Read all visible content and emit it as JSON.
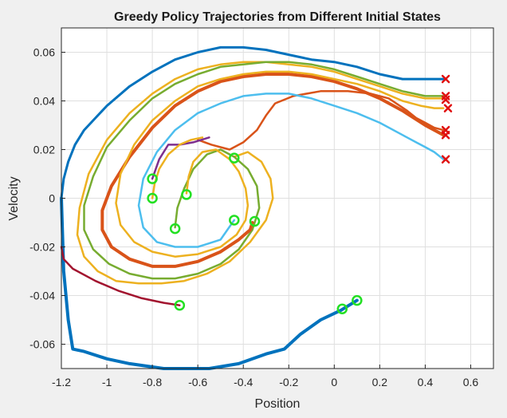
{
  "chart_data": {
    "type": "line",
    "title": "Greedy Policy Trajectories from Different Initial States",
    "xlabel": "Position",
    "ylabel": "Velocity",
    "xlim": [
      -1.2,
      0.7
    ],
    "ylim": [
      -0.07,
      0.07
    ],
    "xticks": [
      -1.2,
      -1,
      -0.8,
      -0.6,
      -0.4,
      -0.2,
      0,
      0.2,
      0.4,
      0.6
    ],
    "xtick_labels": [
      "-1.2",
      "-1",
      "-0.8",
      "-0.6",
      "-0.4",
      "-0.2",
      "0",
      "0.2",
      "0.4",
      "0.6"
    ],
    "yticks": [
      -0.06,
      -0.04,
      -0.02,
      0,
      0.02,
      0.04,
      0.06
    ],
    "ytick_labels": [
      "-0.06",
      "-0.04",
      "-0.02",
      "0",
      "0.02",
      "0.04",
      "0.06"
    ],
    "grid": true,
    "start_marker": {
      "shape": "circle",
      "color": "#22e022"
    },
    "end_marker": {
      "shape": "x",
      "color": "#e01010"
    },
    "series": [
      {
        "color": "#0072bd",
        "width": 4,
        "x": [
          0.1,
          0.03,
          -0.06,
          -0.15,
          -0.22,
          -0.3,
          -0.42,
          -0.55,
          -0.65,
          -0.75,
          -0.9,
          -1.0,
          -1.1,
          -1.15,
          -1.17,
          -1.19,
          -1.2
        ],
        "y": [
          -0.042,
          -0.046,
          -0.05,
          -0.056,
          -0.062,
          -0.064,
          -0.068,
          -0.07,
          -0.07,
          -0.07,
          -0.068,
          -0.066,
          -0.063,
          -0.062,
          -0.05,
          -0.03,
          0.0
        ]
      },
      {
        "color": "#0072bd",
        "width": 3,
        "x": [
          -1.2,
          -1.19,
          -1.17,
          -1.14,
          -1.1,
          -1.0,
          -0.9,
          -0.8,
          -0.7,
          -0.6,
          -0.5,
          -0.4,
          -0.3,
          -0.2,
          -0.1,
          0.0,
          0.1,
          0.2,
          0.3,
          0.4,
          0.48
        ],
        "y": [
          0.0,
          0.008,
          0.015,
          0.022,
          0.028,
          0.038,
          0.046,
          0.052,
          0.057,
          0.06,
          0.062,
          0.062,
          0.061,
          0.059,
          0.057,
          0.056,
          0.054,
          0.051,
          0.049,
          0.049,
          0.049
        ]
      },
      {
        "color": "#a2142f",
        "width": 2.5,
        "x": [
          -0.68,
          -0.75,
          -0.85,
          -0.95,
          -1.05,
          -1.15,
          -1.19,
          -1.2
        ],
        "y": [
          -0.044,
          -0.043,
          -0.041,
          -0.038,
          -0.034,
          -0.029,
          -0.025,
          -0.02
        ]
      },
      {
        "color": "#edb120",
        "width": 2.5,
        "x": [
          0.48,
          0.4,
          0.3,
          0.2,
          0.1,
          0.0,
          -0.1,
          -0.2,
          -0.3,
          -0.4,
          -0.5,
          -0.6,
          -0.7,
          -0.8,
          -0.9,
          -1.0,
          -1.08,
          -1.12,
          -1.13,
          -1.1,
          -1.04,
          -0.96,
          -0.86,
          -0.76,
          -0.66,
          -0.56,
          -0.46,
          -0.37,
          -0.3,
          -0.27,
          -0.28,
          -0.32,
          -0.38,
          -0.44
        ],
        "y": [
          0.041,
          0.041,
          0.043,
          0.046,
          0.049,
          0.052,
          0.054,
          0.055,
          0.056,
          0.056,
          0.055,
          0.053,
          0.049,
          0.043,
          0.035,
          0.024,
          0.01,
          -0.004,
          -0.015,
          -0.024,
          -0.03,
          -0.034,
          -0.035,
          -0.035,
          -0.034,
          -0.031,
          -0.026,
          -0.018,
          -0.009,
          0.0,
          0.008,
          0.015,
          0.019,
          0.017
        ]
      },
      {
        "color": "#77ac30",
        "width": 2.5,
        "x": [
          0.48,
          0.4,
          0.3,
          0.2,
          0.1,
          0.0,
          -0.1,
          -0.2,
          -0.3,
          -0.4,
          -0.5,
          -0.6,
          -0.7,
          -0.8,
          -0.9,
          -1.0,
          -1.06,
          -1.1,
          -1.1,
          -1.06,
          -0.99,
          -0.9,
          -0.8,
          -0.7,
          -0.6,
          -0.5,
          -0.42,
          -0.36,
          -0.33,
          -0.34,
          -0.38,
          -0.44,
          -0.5,
          -0.56,
          -0.62,
          -0.66,
          -0.69,
          -0.7
        ],
        "y": [
          0.042,
          0.042,
          0.044,
          0.047,
          0.05,
          0.053,
          0.055,
          0.056,
          0.056,
          0.055,
          0.054,
          0.051,
          0.047,
          0.041,
          0.032,
          0.021,
          0.009,
          -0.003,
          -0.013,
          -0.021,
          -0.027,
          -0.031,
          -0.033,
          -0.033,
          -0.031,
          -0.027,
          -0.021,
          -0.013,
          -0.004,
          0.005,
          0.012,
          0.017,
          0.02,
          0.018,
          0.012,
          0.004,
          -0.004,
          -0.012
        ]
      },
      {
        "color": "#d95319",
        "width": 4,
        "x": [
          0.48,
          0.44,
          0.4,
          0.3,
          0.2,
          0.1,
          0.0,
          -0.1,
          -0.2,
          -0.3,
          -0.4,
          -0.5,
          -0.6,
          -0.7,
          -0.8,
          -0.9,
          -0.98,
          -1.02,
          -1.02,
          -0.98,
          -0.9,
          -0.8,
          -0.7,
          -0.6,
          -0.5,
          -0.42,
          -0.37,
          -0.36
        ],
        "y": [
          0.026,
          0.028,
          0.03,
          0.036,
          0.041,
          0.045,
          0.048,
          0.05,
          0.051,
          0.051,
          0.05,
          0.048,
          0.044,
          0.038,
          0.029,
          0.017,
          0.005,
          -0.005,
          -0.013,
          -0.02,
          -0.025,
          -0.028,
          -0.028,
          -0.026,
          -0.022,
          -0.017,
          -0.013,
          -0.01
        ]
      },
      {
        "color": "#d95319",
        "width": 2.5,
        "x": [
          0.48,
          0.44,
          0.4,
          0.36,
          0.32,
          0.24,
          0.16,
          0.06,
          -0.06,
          -0.18,
          -0.26,
          -0.3,
          -0.34,
          -0.4,
          -0.46,
          -0.54,
          -0.6
        ],
        "y": [
          0.028,
          0.029,
          0.031,
          0.033,
          0.036,
          0.041,
          0.043,
          0.044,
          0.044,
          0.042,
          0.039,
          0.034,
          0.028,
          0.023,
          0.02,
          0.022,
          0.024
        ]
      },
      {
        "color": "#edb120",
        "width": 2.5,
        "x": [
          0.48,
          0.44,
          0.38,
          0.3,
          0.2,
          0.1,
          0.0,
          -0.1,
          -0.2,
          -0.3,
          -0.4,
          -0.5,
          -0.6,
          -0.7,
          -0.8,
          -0.88,
          -0.94,
          -0.96,
          -0.94,
          -0.88,
          -0.8,
          -0.7,
          -0.6,
          -0.5,
          -0.43,
          -0.39,
          -0.38,
          -0.39,
          -0.42,
          -0.46,
          -0.52,
          -0.58,
          -0.62,
          -0.64,
          -0.65
        ],
        "y": [
          0.037,
          0.037,
          0.038,
          0.04,
          0.044,
          0.047,
          0.049,
          0.051,
          0.052,
          0.052,
          0.051,
          0.049,
          0.046,
          0.04,
          0.032,
          0.022,
          0.01,
          -0.002,
          -0.011,
          -0.018,
          -0.022,
          -0.024,
          -0.023,
          -0.02,
          -0.015,
          -0.009,
          -0.003,
          0.004,
          0.011,
          0.016,
          0.02,
          0.019,
          0.015,
          0.009,
          0.002
        ]
      },
      {
        "color": "#4dbeee",
        "width": 2.5,
        "x": [
          0.48,
          0.44,
          0.4,
          0.36,
          0.3,
          0.2,
          0.1,
          0.0,
          -0.1,
          -0.2,
          -0.3,
          -0.4,
          -0.5,
          -0.6,
          -0.7,
          -0.78,
          -0.84,
          -0.86,
          -0.84,
          -0.78,
          -0.7,
          -0.6,
          -0.5,
          -0.44
        ],
        "y": [
          0.016,
          0.019,
          0.021,
          0.023,
          0.026,
          0.031,
          0.035,
          0.038,
          0.041,
          0.043,
          0.043,
          0.042,
          0.039,
          0.035,
          0.028,
          0.019,
          0.008,
          -0.003,
          -0.012,
          -0.018,
          -0.02,
          -0.02,
          -0.017,
          -0.009
        ]
      },
      {
        "color": "#7e2f8e",
        "width": 2.5,
        "x": [
          -0.8,
          -0.77,
          -0.73,
          -0.68,
          -0.62,
          -0.55
        ],
        "y": [
          0.008,
          0.016,
          0.022,
          0.022,
          0.023,
          0.025
        ]
      },
      {
        "color": "#edb120",
        "width": 2.5,
        "x": [
          -0.8,
          -0.79,
          -0.77,
          -0.73,
          -0.68,
          -0.63,
          -0.58
        ],
        "y": [
          0.0,
          0.006,
          0.012,
          0.018,
          0.022,
          0.024,
          0.025
        ]
      }
    ],
    "start_points": [
      {
        "x": 0.1,
        "y": -0.042
      },
      {
        "x": 0.035,
        "y": -0.0455
      },
      {
        "x": -0.68,
        "y": -0.044
      },
      {
        "x": -0.8,
        "y": 0.008
      },
      {
        "x": -0.8,
        "y": 0.0
      },
      {
        "x": -0.65,
        "y": 0.0015
      },
      {
        "x": -0.7,
        "y": -0.0125
      },
      {
        "x": -0.44,
        "y": 0.0165
      },
      {
        "x": -0.44,
        "y": -0.009
      },
      {
        "x": -0.35,
        "y": -0.0095
      }
    ],
    "end_points": [
      {
        "x": 0.49,
        "y": 0.049
      },
      {
        "x": 0.49,
        "y": 0.042
      },
      {
        "x": 0.49,
        "y": 0.0405
      },
      {
        "x": 0.5,
        "y": 0.037
      },
      {
        "x": 0.49,
        "y": 0.028
      },
      {
        "x": 0.49,
        "y": 0.026
      },
      {
        "x": 0.49,
        "y": 0.016
      }
    ]
  }
}
